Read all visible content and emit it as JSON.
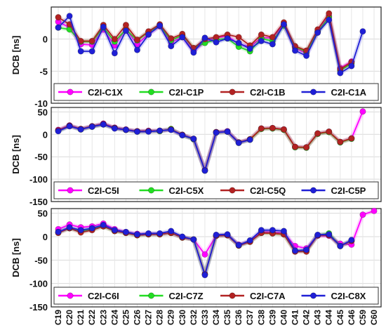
{
  "figure": {
    "ylabel": "DCB [ns]",
    "x_categories": [
      "C19",
      "C20",
      "C21",
      "C22",
      "C23",
      "C24",
      "C25",
      "C26",
      "C27",
      "C28",
      "C29",
      "C30",
      "C32",
      "C33",
      "C34",
      "C35",
      "C36",
      "C37",
      "C38",
      "C39",
      "C40",
      "C41",
      "C42",
      "C43",
      "C44",
      "C45",
      "C46",
      "C59",
      "C60"
    ]
  },
  "chart_data": [
    {
      "type": "line",
      "ylabel": "DCB [ns]",
      "ylim": [
        -10,
        5
      ],
      "yticks": [
        -10,
        -5,
        0
      ],
      "grid": true,
      "legend_position": "bottom",
      "categories": [
        "C19",
        "C20",
        "C21",
        "C22",
        "C23",
        "C24",
        "C25",
        "C26",
        "C27",
        "C28",
        "C29",
        "C30",
        "C32",
        "C33",
        "C34",
        "C35",
        "C36",
        "C37",
        "C38",
        "C39",
        "C40",
        "C41",
        "C42",
        "C43",
        "C44",
        "C45",
        "C46",
        "C59",
        "C60"
      ],
      "series": [
        {
          "name": "C2I-C1X",
          "color": "#ff00ff",
          "values": [
            2.7,
            1.8,
            -0.8,
            -0.9,
            1.5,
            -1.0,
            1.6,
            -0.8,
            0.8,
            2.0,
            -0.5,
            0.3,
            -1.8,
            -0.5,
            0.2,
            0.5,
            -0.8,
            -1.2,
            0.2,
            0.2,
            2.2,
            -1.4,
            -2.2,
            1.2,
            3.6,
            -4.5,
            -3.5,
            null,
            null
          ]
        },
        {
          "name": "C2I-C1P",
          "color": "#22dd22",
          "values": [
            1.8,
            1.5,
            -0.4,
            -0.4,
            1.8,
            -0.4,
            1.5,
            -0.2,
            1.1,
            2.1,
            -0.2,
            0.6,
            -1.4,
            -0.6,
            -0.1,
            0.1,
            -1.2,
            -1.9,
            0.1,
            -0.3,
            2.1,
            -1.2,
            -2.0,
            1.1,
            3.4,
            -4.9,
            -3.8,
            null,
            null
          ]
        },
        {
          "name": "C2I-C1B",
          "color": "#b22222",
          "values": [
            3.4,
            2.3,
            -0.3,
            -0.3,
            2.2,
            0.0,
            2.2,
            -0.1,
            1.2,
            2.3,
            0.1,
            0.8,
            -1.4,
            0.0,
            0.3,
            0.7,
            0.3,
            -1.0,
            0.7,
            0.3,
            2.6,
            -1.1,
            -1.8,
            1.5,
            4.0,
            -4.7,
            -3.6,
            null,
            null
          ]
        },
        {
          "name": "C2I-C1A",
          "color": "#1f1fd6",
          "values": [
            1.8,
            3.6,
            -1.9,
            -1.9,
            1.9,
            -2.2,
            1.3,
            -1.7,
            0.7,
            2.1,
            -1.1,
            0.3,
            -2.1,
            0.2,
            -0.5,
            0.1,
            -0.6,
            -1.5,
            -0.3,
            -0.8,
            2.3,
            -1.8,
            -2.6,
            1.0,
            3.0,
            -5.3,
            -4.2,
            1.2,
            null
          ]
        }
      ]
    },
    {
      "type": "line",
      "ylabel": "DCB [ns]",
      "ylim": [
        -150,
        60
      ],
      "yticks": [
        -150,
        -100,
        -50,
        0,
        50
      ],
      "grid": true,
      "legend_position": "bottom",
      "categories": [
        "C19",
        "C20",
        "C21",
        "C22",
        "C23",
        "C24",
        "C25",
        "C26",
        "C27",
        "C28",
        "C29",
        "C30",
        "C32",
        "C33",
        "C34",
        "C35",
        "C36",
        "C37",
        "C38",
        "C39",
        "C40",
        "C41",
        "C42",
        "C43",
        "C44",
        "C45",
        "C46",
        "C59",
        "C60"
      ],
      "series": [
        {
          "name": "C2I-C5I",
          "color": "#ff00ff",
          "values": [
            10,
            20,
            12,
            18,
            24,
            15,
            11,
            7,
            8,
            8,
            11,
            -1,
            -10,
            -80,
            5,
            7,
            -18,
            -11,
            13,
            14,
            11,
            -28,
            -29,
            2,
            6,
            -17,
            -9,
            51,
            null
          ]
        },
        {
          "name": "C2I-C5X",
          "color": "#22dd22",
          "values": [
            8,
            19,
            11,
            17,
            22,
            14,
            10,
            6,
            7,
            7,
            12,
            -2,
            -11,
            -81,
            4,
            6,
            -19,
            -12,
            12,
            13,
            10,
            -29,
            -30,
            1,
            5,
            -18,
            -10,
            null,
            null
          ]
        },
        {
          "name": "C2I-C5Q",
          "color": "#b22222",
          "values": [
            9,
            19,
            12,
            18,
            23,
            14,
            10,
            7,
            7,
            8,
            11,
            -1,
            -10,
            -80,
            5,
            6,
            -18,
            -11,
            13,
            14,
            11,
            -28,
            -29,
            2,
            6,
            -17,
            -9,
            null,
            null
          ]
        },
        {
          "name": "C2I-C5P",
          "color": "#1f1fd6",
          "values": [
            7,
            18,
            11,
            17,
            22,
            13,
            10,
            6,
            6,
            8,
            10,
            -2,
            -10,
            -81,
            4,
            6,
            -19,
            -12,
            null,
            null,
            null,
            null,
            null,
            null,
            null,
            null,
            null,
            null,
            null
          ]
        }
      ]
    },
    {
      "type": "line",
      "ylabel": "DCB [ns]",
      "ylim": [
        -150,
        60
      ],
      "yticks": [
        -150,
        -100,
        -50,
        0,
        50
      ],
      "grid": true,
      "legend_position": "bottom",
      "categories": [
        "C19",
        "C20",
        "C21",
        "C22",
        "C23",
        "C24",
        "C25",
        "C26",
        "C27",
        "C28",
        "C29",
        "C30",
        "C32",
        "C33",
        "C34",
        "C35",
        "C36",
        "C37",
        "C38",
        "C39",
        "C40",
        "C41",
        "C42",
        "C43",
        "C44",
        "C45",
        "C46",
        "C59",
        "C60"
      ],
      "series": [
        {
          "name": "C2I-C6I",
          "color": "#ff00ff",
          "values": [
            16,
            26,
            20,
            22,
            28,
            16,
            10,
            6,
            6,
            6,
            8,
            -1,
            -6,
            -38,
            2,
            3,
            -17,
            -10,
            10,
            10,
            8,
            -20,
            -25,
            2,
            2,
            -15,
            -17,
            47,
            55
          ]
        },
        {
          "name": "C2I-C7Z",
          "color": "#22dd22",
          "values": [
            10,
            18,
            12,
            16,
            22,
            12,
            8,
            3,
            5,
            5,
            8,
            -2,
            -6,
            -80,
            2,
            3,
            -19,
            -11,
            8,
            7,
            5,
            -30,
            -30,
            3,
            7,
            -20,
            -9,
            null,
            null
          ]
        },
        {
          "name": "C2I-C7A",
          "color": "#b22222",
          "values": [
            8,
            18,
            9,
            14,
            22,
            12,
            8,
            3,
            5,
            5,
            8,
            -2,
            -6,
            -80,
            2,
            3,
            -19,
            -11,
            8,
            7,
            5,
            -32,
            -32,
            3,
            3,
            -20,
            -9,
            null,
            null
          ]
        },
        {
          "name": "C2I-C8X",
          "color": "#1f1fd6",
          "values": [
            10,
            20,
            14,
            18,
            25,
            14,
            10,
            5,
            7,
            7,
            12,
            0,
            -6,
            -82,
            4,
            5,
            -18,
            -8,
            14,
            14,
            12,
            -30,
            -28,
            4,
            5,
            -20,
            -7,
            null,
            null
          ]
        }
      ]
    }
  ]
}
